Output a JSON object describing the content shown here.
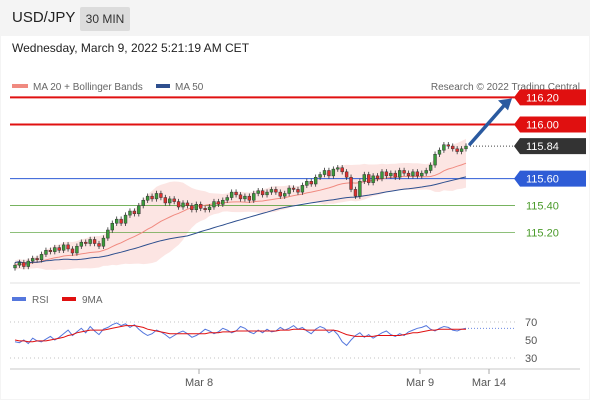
{
  "header": {
    "pair": "USD/JPY",
    "timeframe": "30 MIN"
  },
  "datetime": "Wednesday, March 9, 2022 5:21:19 AM CET",
  "legend": {
    "ma20": "MA 20 + Bollinger Bands",
    "ma50": "MA 50",
    "credit": "Research © 2022 Trading Central",
    "rsi": "RSI",
    "rsi_ma": "9MA"
  },
  "colors": {
    "red": "#e01010",
    "blue": "#2e5cd6",
    "green": "#4a9a2a",
    "dark": "#333333",
    "band": "#f9d0cc",
    "arrow": "#2a5aa0"
  },
  "chart_data": [
    {
      "type": "candlestick",
      "title": "",
      "x_labels": [
        "Mar 8",
        "Mar 9",
        "Mar 14"
      ],
      "levels": [
        {
          "value": 116.2,
          "label": "116.20",
          "style": "red-line-tag"
        },
        {
          "value": 116.0,
          "label": "116.00",
          "style": "red-line-tag"
        },
        {
          "value": 115.84,
          "label": "115.84",
          "style": "last-price-tag"
        },
        {
          "value": 115.6,
          "label": "115.60",
          "style": "blue-line-tag"
        },
        {
          "value": 115.4,
          "label": "115.40",
          "style": "green-line-label"
        },
        {
          "value": 115.2,
          "label": "115.20",
          "style": "green-line-label"
        }
      ],
      "ylim": [
        114.88,
        116.24
      ],
      "close": [
        114.96,
        114.98,
        114.95,
        114.99,
        115.01,
        115.0,
        115.04,
        115.07,
        115.06,
        115.09,
        115.07,
        115.11,
        115.08,
        115.05,
        115.1,
        115.13,
        115.12,
        115.15,
        115.12,
        115.1,
        115.16,
        115.22,
        115.27,
        115.3,
        115.27,
        115.33,
        115.36,
        115.34,
        115.4,
        115.44,
        115.47,
        115.45,
        115.49,
        115.46,
        115.42,
        115.45,
        115.43,
        115.39,
        115.42,
        115.4,
        115.37,
        115.41,
        115.38,
        115.37,
        115.39,
        115.43,
        115.41,
        115.44,
        115.46,
        115.5,
        115.48,
        115.45,
        115.47,
        115.44,
        115.49,
        115.51,
        115.48,
        115.5,
        115.52,
        115.5,
        115.47,
        115.49,
        115.53,
        115.52,
        115.5,
        115.55,
        115.58,
        115.56,
        115.61,
        115.63,
        115.66,
        115.62,
        115.67,
        115.68,
        115.65,
        115.61,
        115.52,
        115.47,
        115.58,
        115.63,
        115.57,
        115.62,
        115.6,
        115.65,
        115.62,
        115.64,
        115.61,
        115.66,
        115.64,
        115.62,
        115.65,
        115.62,
        115.64,
        115.66,
        115.7,
        115.78,
        115.81,
        115.85,
        115.84,
        115.82,
        115.8,
        115.82,
        115.84
      ],
      "ma20_trend": "rising",
      "ma50_trend": "rising",
      "projection": {
        "from": 115.84,
        "to": 116.2
      }
    },
    {
      "type": "line",
      "title": "",
      "yticks": [
        70,
        50,
        30
      ],
      "ylim": [
        20,
        80
      ],
      "series": [
        {
          "name": "RSI",
          "color": "#5577dd",
          "values": [
            48,
            47,
            50,
            46,
            52,
            49,
            48,
            51,
            54,
            50,
            53,
            57,
            61,
            55,
            59,
            63,
            58,
            65,
            60,
            56,
            62,
            64,
            67,
            69,
            66,
            68,
            64,
            67,
            62,
            58,
            55,
            57,
            61,
            59,
            56,
            52,
            55,
            58,
            60,
            57,
            53,
            55,
            58,
            62,
            60,
            57,
            59,
            63,
            61,
            58,
            60,
            65,
            63,
            59,
            57,
            61,
            58,
            62,
            59,
            60,
            64,
            61,
            63,
            66,
            62,
            64,
            60,
            57,
            62,
            65,
            63,
            58,
            61,
            56,
            48,
            44,
            50,
            55,
            58,
            53,
            56,
            52,
            55,
            58,
            60,
            56,
            54,
            57,
            55,
            59,
            61,
            63,
            64,
            66,
            62,
            60,
            63,
            65,
            64,
            61,
            60,
            62,
            63
          ]
        },
        {
          "name": "9MA",
          "color": "#e01010",
          "values": [
            50,
            49,
            49,
            48,
            48,
            49,
            49,
            49,
            50,
            51,
            52,
            53,
            55,
            56,
            58,
            59,
            60,
            61,
            61,
            61,
            61,
            62,
            63,
            64,
            65,
            66,
            66,
            66,
            65,
            64,
            62,
            61,
            60,
            59,
            58,
            57,
            57,
            57,
            57,
            57,
            57,
            57,
            57,
            57,
            58,
            58,
            58,
            59,
            59,
            59,
            60,
            60,
            60,
            60,
            60,
            60,
            60,
            60,
            60,
            60,
            61,
            61,
            61,
            62,
            62,
            62,
            61,
            61,
            61,
            61,
            61,
            61,
            61,
            60,
            58,
            56,
            55,
            54,
            54,
            54,
            54,
            54,
            55,
            55,
            55,
            55,
            55,
            55,
            56,
            57,
            58,
            58,
            59,
            60,
            61,
            61,
            62,
            62,
            62,
            62,
            62,
            62,
            62
          ]
        }
      ]
    }
  ]
}
